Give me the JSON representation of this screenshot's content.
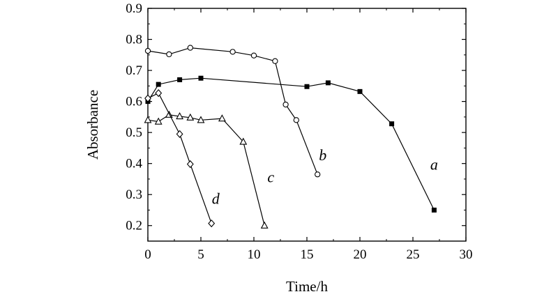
{
  "chart_data": {
    "type": "line",
    "xlabel": "Time/h",
    "ylabel": "Absorbance",
    "xlim": [
      0,
      30
    ],
    "ylim": [
      0.15,
      0.9
    ],
    "xticks": [
      0,
      5,
      10,
      15,
      20,
      25,
      30
    ],
    "xtick_labels": [
      "0",
      "5",
      "10",
      "15",
      "20",
      "25",
      "30"
    ],
    "yticks": [
      0.2,
      0.3,
      0.4,
      0.5,
      0.6,
      0.7,
      0.8,
      0.9
    ],
    "ytick_labels": [
      "0.2",
      "0.3",
      "0.4",
      "0.5",
      "0.6",
      "0.7",
      "0.8",
      "0.9"
    ],
    "grid": false,
    "series": [
      {
        "name": "a",
        "marker": "filled-square",
        "x": [
          0,
          1,
          3,
          5,
          15,
          17,
          20,
          23,
          27
        ],
        "y": [
          0.6,
          0.655,
          0.67,
          0.675,
          0.648,
          0.66,
          0.632,
          0.528,
          0.25
        ]
      },
      {
        "name": "b",
        "marker": "open-circle",
        "x": [
          0,
          2,
          4,
          8,
          10,
          12,
          13,
          14,
          16
        ],
        "y": [
          0.763,
          0.752,
          0.773,
          0.76,
          0.748,
          0.73,
          0.59,
          0.54,
          0.365
        ]
      },
      {
        "name": "c",
        "marker": "open-triangle",
        "x": [
          0,
          1,
          2,
          3,
          4,
          5,
          7,
          9,
          11
        ],
        "y": [
          0.54,
          0.535,
          0.557,
          0.552,
          0.548,
          0.54,
          0.545,
          0.47,
          0.2
        ]
      },
      {
        "name": "d",
        "marker": "open-diamond",
        "x": [
          0,
          1,
          3,
          4,
          6
        ],
        "y": [
          0.61,
          0.627,
          0.495,
          0.398,
          0.207
        ]
      }
    ]
  }
}
